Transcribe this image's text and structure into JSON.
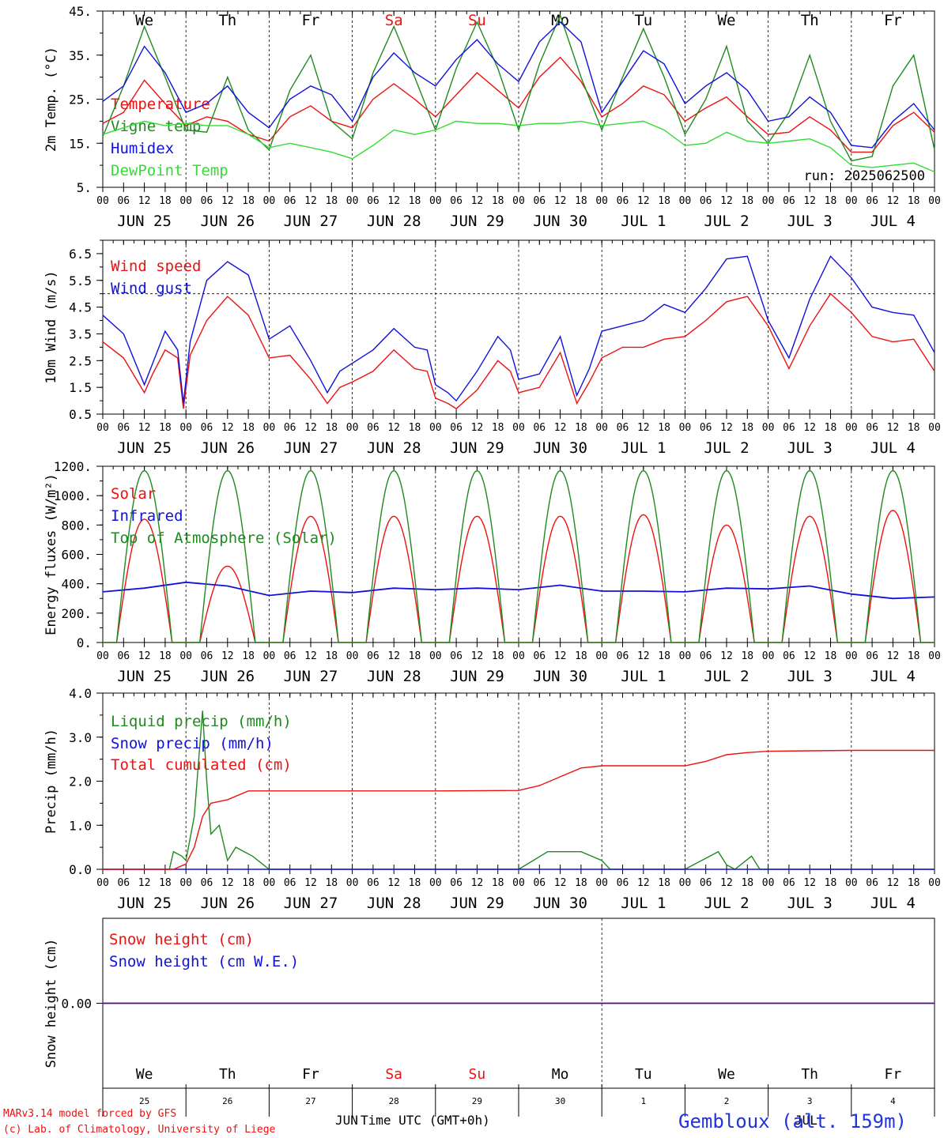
{
  "meta": {
    "run_label": "run: 2025062500",
    "credit_line1": "MARv3.14 model forced by GFS",
    "credit_line2": "(c) Lab. of Climatology, University of Liege",
    "station": "Gembloux (alt. 159m)",
    "xlabel": "Time UTC (GMT+0h)",
    "month_left": "JUN",
    "month_right": "JUL"
  },
  "colors": {
    "red": "#ee1111",
    "green": "#1f8a1f",
    "blue": "#1111dd",
    "lightgreen": "#33dd33",
    "weekend": "#ee1111",
    "station": "#2233dd",
    "axis": "#000000"
  },
  "time_axis": {
    "hour_ticks": [
      "00",
      "06",
      "12",
      "18"
    ],
    "final_tick": "00",
    "date_labels": [
      "JUN 25",
      "JUN 26",
      "JUN 27",
      "JUN 28",
      "JUN 29",
      "JUN 30",
      "JUL  1",
      "JUL  2",
      "JUL  3",
      "JUL  4"
    ],
    "day_names": [
      "We",
      "Th",
      "Fr",
      "Sa",
      "Su",
      "Mo",
      "Tu",
      "We",
      "Th",
      "Fr"
    ],
    "weekend_days": [
      3,
      4
    ],
    "day_numbers": [
      "25",
      "26",
      "27",
      "28",
      "29",
      "30",
      "1",
      "2",
      "3",
      "4"
    ]
  },
  "chart_data": [
    {
      "type": "line",
      "ylabel": "2m Temp. (°C)",
      "ylim": [
        5,
        45
      ],
      "yticks": [
        5,
        15,
        25,
        35,
        45
      ],
      "ytick_labels": [
        "5.",
        "15.",
        "25.",
        "35.",
        "45."
      ],
      "x_unit": "days since Jun 25 00 UTC",
      "series": [
        {
          "name": "Temperature",
          "color_key": "red",
          "x": [
            0,
            0.25,
            0.5,
            0.75,
            1,
            1.25,
            1.5,
            1.75,
            2,
            2.25,
            2.5,
            2.75,
            3,
            3.25,
            3.5,
            3.75,
            4,
            4.25,
            4.5,
            4.75,
            5,
            5.25,
            5.5,
            5.75,
            6,
            6.25,
            6.5,
            6.75,
            7,
            7.25,
            7.5,
            7.75,
            8,
            8.25,
            8.5,
            8.75,
            9,
            9.25,
            9.5,
            9.75,
            10
          ],
          "y": [
            19.5,
            22,
            29.3,
            24,
            19,
            21,
            20,
            17,
            15.5,
            21,
            23.5,
            20,
            18.5,
            25,
            28.5,
            25,
            21,
            26,
            31,
            27,
            23,
            30,
            34.5,
            29,
            21,
            24,
            28,
            26,
            20,
            23,
            25.5,
            21,
            17,
            17.5,
            21,
            18,
            13,
            13,
            19,
            22,
            17.5
          ]
        },
        {
          "name": "Vigne temp",
          "color_key": "green",
          "x": [
            0,
            0.25,
            0.5,
            0.75,
            1,
            1.25,
            1.5,
            1.75,
            2,
            2.25,
            2.5,
            2.75,
            3,
            3.25,
            3.5,
            3.75,
            4,
            4.25,
            4.5,
            4.75,
            5,
            5.25,
            5.5,
            5.75,
            6,
            6.25,
            6.5,
            6.75,
            7,
            7.25,
            7.5,
            7.75,
            8,
            8.25,
            8.5,
            8.75,
            9,
            9.25,
            9.5,
            9.75,
            10
          ],
          "y": [
            16.5,
            28,
            41.5,
            30,
            18,
            17.5,
            30,
            18,
            13.5,
            27,
            35,
            20,
            16,
            31,
            41.5,
            30,
            18,
            32,
            42.5,
            32,
            18,
            33,
            44,
            30,
            18,
            30,
            41,
            30,
            17,
            25,
            37,
            20,
            15,
            22,
            35,
            20,
            11,
            12,
            28,
            35,
            13.5
          ]
        },
        {
          "name": "Humidex",
          "color_key": "blue",
          "x": [
            0,
            0.25,
            0.5,
            0.75,
            1,
            1.25,
            1.5,
            1.75,
            2,
            2.25,
            2.5,
            2.75,
            3,
            3.25,
            3.5,
            3.75,
            4,
            4.25,
            4.5,
            4.75,
            5,
            5.25,
            5.5,
            5.75,
            6,
            6.25,
            6.5,
            6.75,
            7,
            7.25,
            7.5,
            7.75,
            8,
            8.25,
            8.5,
            8.75,
            9,
            9.25,
            9.5,
            9.75,
            10
          ],
          "y": [
            24.5,
            28,
            37,
            31,
            22,
            24,
            28,
            22,
            18.5,
            25,
            28,
            26,
            20,
            30,
            35.5,
            31,
            28,
            34,
            38.5,
            33,
            29,
            38,
            42.5,
            38,
            22,
            29,
            36,
            33,
            24,
            28,
            31,
            27,
            20,
            21,
            25.5,
            22,
            14.5,
            14,
            20,
            24,
            18
          ]
        },
        {
          "name": "DewPoint Temp",
          "color_key": "lightgreen",
          "x": [
            0,
            0.25,
            0.5,
            0.75,
            1,
            1.25,
            1.5,
            1.75,
            2,
            2.25,
            2.5,
            2.75,
            3,
            3.25,
            3.5,
            3.75,
            4,
            4.25,
            4.5,
            4.75,
            5,
            5.25,
            5.5,
            5.75,
            6,
            6.25,
            6.5,
            6.75,
            7,
            7.25,
            7.5,
            7.75,
            8,
            8.25,
            8.5,
            8.75,
            9,
            9.25,
            9.5,
            9.75,
            10
          ],
          "y": [
            17,
            18.5,
            20,
            19,
            19.5,
            19,
            19,
            17,
            14,
            15,
            14,
            13,
            11.5,
            14.5,
            18,
            17,
            18,
            20,
            19.5,
            19.5,
            19,
            19.5,
            19.5,
            20,
            19,
            19.5,
            20,
            18,
            14.5,
            15,
            17.5,
            15.5,
            15,
            15.5,
            16,
            14,
            10,
            9.5,
            10,
            10.5,
            8.5
          ]
        }
      ]
    },
    {
      "type": "line",
      "ylabel": "10m Wind (m/s)",
      "ylim": [
        0.5,
        7
      ],
      "yticks": [
        0.5,
        1.5,
        2.5,
        3.5,
        4.5,
        5.5,
        6.5
      ],
      "ytick_labels": [
        "0.5",
        "1.5",
        "2.5",
        "3.5",
        "4.5",
        "5.5",
        "6.5"
      ],
      "ref_line": 5,
      "series": [
        {
          "name": "Wind speed",
          "color_key": "red",
          "x": [
            0,
            0.25,
            0.5,
            0.6,
            0.75,
            0.9,
            0.97,
            1.05,
            1.25,
            1.5,
            1.75,
            2,
            2.25,
            2.5,
            2.7,
            2.85,
            3,
            3.25,
            3.5,
            3.75,
            3.9,
            4,
            4.15,
            4.25,
            4.5,
            4.75,
            4.9,
            5,
            5.25,
            5.5,
            5.7,
            5.85,
            6,
            6.25,
            6.5,
            6.75,
            7,
            7.25,
            7.5,
            7.75,
            8,
            8.25,
            8.5,
            8.75,
            9,
            9.25,
            9.5,
            9.75,
            10
          ],
          "y": [
            3.2,
            2.6,
            1.3,
            2,
            2.9,
            2.6,
            0.7,
            2.7,
            4,
            4.9,
            4.2,
            2.6,
            2.7,
            1.8,
            0.9,
            1.5,
            1.7,
            2.1,
            2.9,
            2.2,
            2.1,
            1.1,
            0.9,
            0.7,
            1.4,
            2.5,
            2.1,
            1.3,
            1.5,
            2.8,
            0.9,
            1.7,
            2.6,
            3,
            3,
            3.3,
            3.4,
            4,
            4.7,
            4.9,
            3.8,
            2.2,
            3.8,
            5.0,
            4.3,
            3.4,
            3.2,
            3.3,
            2.1
          ]
        },
        {
          "name": "Wind gust",
          "color_key": "blue",
          "x": [
            0,
            0.25,
            0.5,
            0.6,
            0.75,
            0.9,
            0.97,
            1.05,
            1.25,
            1.5,
            1.75,
            2,
            2.25,
            2.5,
            2.7,
            2.85,
            3,
            3.25,
            3.5,
            3.75,
            3.9,
            4,
            4.15,
            4.25,
            4.5,
            4.75,
            4.9,
            5,
            5.25,
            5.5,
            5.7,
            5.85,
            6,
            6.25,
            6.5,
            6.75,
            7,
            7.25,
            7.5,
            7.75,
            8,
            8.25,
            8.5,
            8.75,
            9,
            9.25,
            9.5,
            9.75,
            10
          ],
          "y": [
            4.2,
            3.5,
            1.6,
            2.4,
            3.6,
            2.9,
            0.9,
            3.2,
            5.5,
            6.2,
            5.7,
            3.3,
            3.8,
            2.5,
            1.3,
            2.1,
            2.4,
            2.9,
            3.7,
            3.0,
            2.9,
            1.6,
            1.3,
            1.0,
            2.1,
            3.4,
            2.9,
            1.8,
            2.0,
            3.4,
            1.2,
            2.2,
            3.6,
            3.8,
            4.0,
            4.6,
            4.3,
            5.2,
            6.3,
            6.4,
            4.0,
            2.6,
            4.8,
            6.4,
            5.6,
            4.5,
            4.3,
            4.2,
            2.8
          ]
        }
      ]
    },
    {
      "type": "line",
      "ylabel": "Energy fluxes (W/m²)",
      "ylim": [
        0,
        1200
      ],
      "yticks": [
        0,
        200,
        400,
        600,
        800,
        1000,
        1200
      ],
      "ytick_labels": [
        "0.",
        "200.",
        "400.",
        "600.",
        "800.",
        "1000.",
        "1200."
      ],
      "series": [
        {
          "name": "Solar",
          "color_key": "red",
          "daily_peaks": [
            840,
            520,
            860,
            860,
            860,
            860,
            870,
            800,
            860,
            900
          ]
        },
        {
          "name": "Infrared",
          "color_key": "blue",
          "x": [
            0,
            0.5,
            1,
            1.5,
            2,
            2.5,
            3,
            3.5,
            4,
            4.5,
            5,
            5.5,
            6,
            6.5,
            7,
            7.5,
            8,
            8.5,
            9,
            9.5,
            10
          ],
          "y": [
            345,
            370,
            410,
            385,
            320,
            350,
            340,
            370,
            360,
            370,
            360,
            390,
            350,
            350,
            345,
            370,
            365,
            385,
            330,
            300,
            310
          ]
        },
        {
          "name": "Top of Atmosphere (Solar)",
          "color_key": "green",
          "daily_peak": 1170
        }
      ]
    },
    {
      "type": "line",
      "ylabel": "Precip (mm/h)",
      "ylim": [
        0,
        4
      ],
      "yticks": [
        0,
        1,
        2,
        3,
        4
      ],
      "ytick_labels": [
        "0.0",
        "1.0",
        "2.0",
        "3.0",
        "4.0"
      ],
      "series": [
        {
          "name": "Liquid precip (mm/h)",
          "color_key": "green",
          "x": [
            0,
            0.8,
            0.85,
            0.95,
            1.0,
            1.1,
            1.2,
            1.25,
            1.3,
            1.4,
            1.5,
            1.6,
            1.7,
            1.8,
            2.0,
            5.0,
            5.35,
            5.5,
            5.75,
            6.0,
            6.1,
            6.5,
            7.0,
            7.1,
            7.3,
            7.4,
            7.5,
            7.6,
            7.8,
            7.9,
            8.0,
            10
          ],
          "y": [
            0,
            0,
            0.4,
            0.3,
            0.2,
            1.2,
            3.6,
            2.0,
            0.8,
            1.0,
            0.2,
            0.5,
            0.4,
            0.3,
            0,
            0,
            0.4,
            0.4,
            0.4,
            0.2,
            0,
            0,
            0,
            0.1,
            0.3,
            0.4,
            0.1,
            0,
            0.3,
            0,
            0,
            0
          ]
        },
        {
          "name": "Snow precip (mm/h)",
          "color_key": "blue",
          "x": [
            0,
            10
          ],
          "y": [
            0,
            0
          ]
        },
        {
          "name": "Total cumulated (cm)",
          "color_key": "red",
          "x": [
            0,
            0.85,
            1.0,
            1.1,
            1.2,
            1.3,
            1.5,
            1.75,
            2,
            3,
            4,
            5,
            5.25,
            5.5,
            5.75,
            6,
            7,
            7.25,
            7.5,
            7.75,
            8,
            9,
            10
          ],
          "y": [
            0,
            0,
            0.12,
            0.5,
            1.2,
            1.5,
            1.58,
            1.78,
            1.78,
            1.78,
            1.78,
            1.79,
            1.9,
            2.1,
            2.3,
            2.35,
            2.35,
            2.45,
            2.6,
            2.65,
            2.68,
            2.7,
            2.7
          ]
        }
      ]
    },
    {
      "type": "line",
      "ylabel": "Snow height (cm)",
      "ylim": [
        -1,
        1
      ],
      "yticks": [
        0
      ],
      "ytick_labels": [
        "0.00"
      ],
      "series": [
        {
          "name": "Snow height (cm)",
          "color_key": "red",
          "x": [
            0,
            10
          ],
          "y": [
            0,
            0
          ]
        },
        {
          "name": "Snow height (cm W.E.)",
          "color_key": "blue",
          "x": [
            0,
            10
          ],
          "y": [
            0,
            0
          ]
        }
      ]
    }
  ]
}
